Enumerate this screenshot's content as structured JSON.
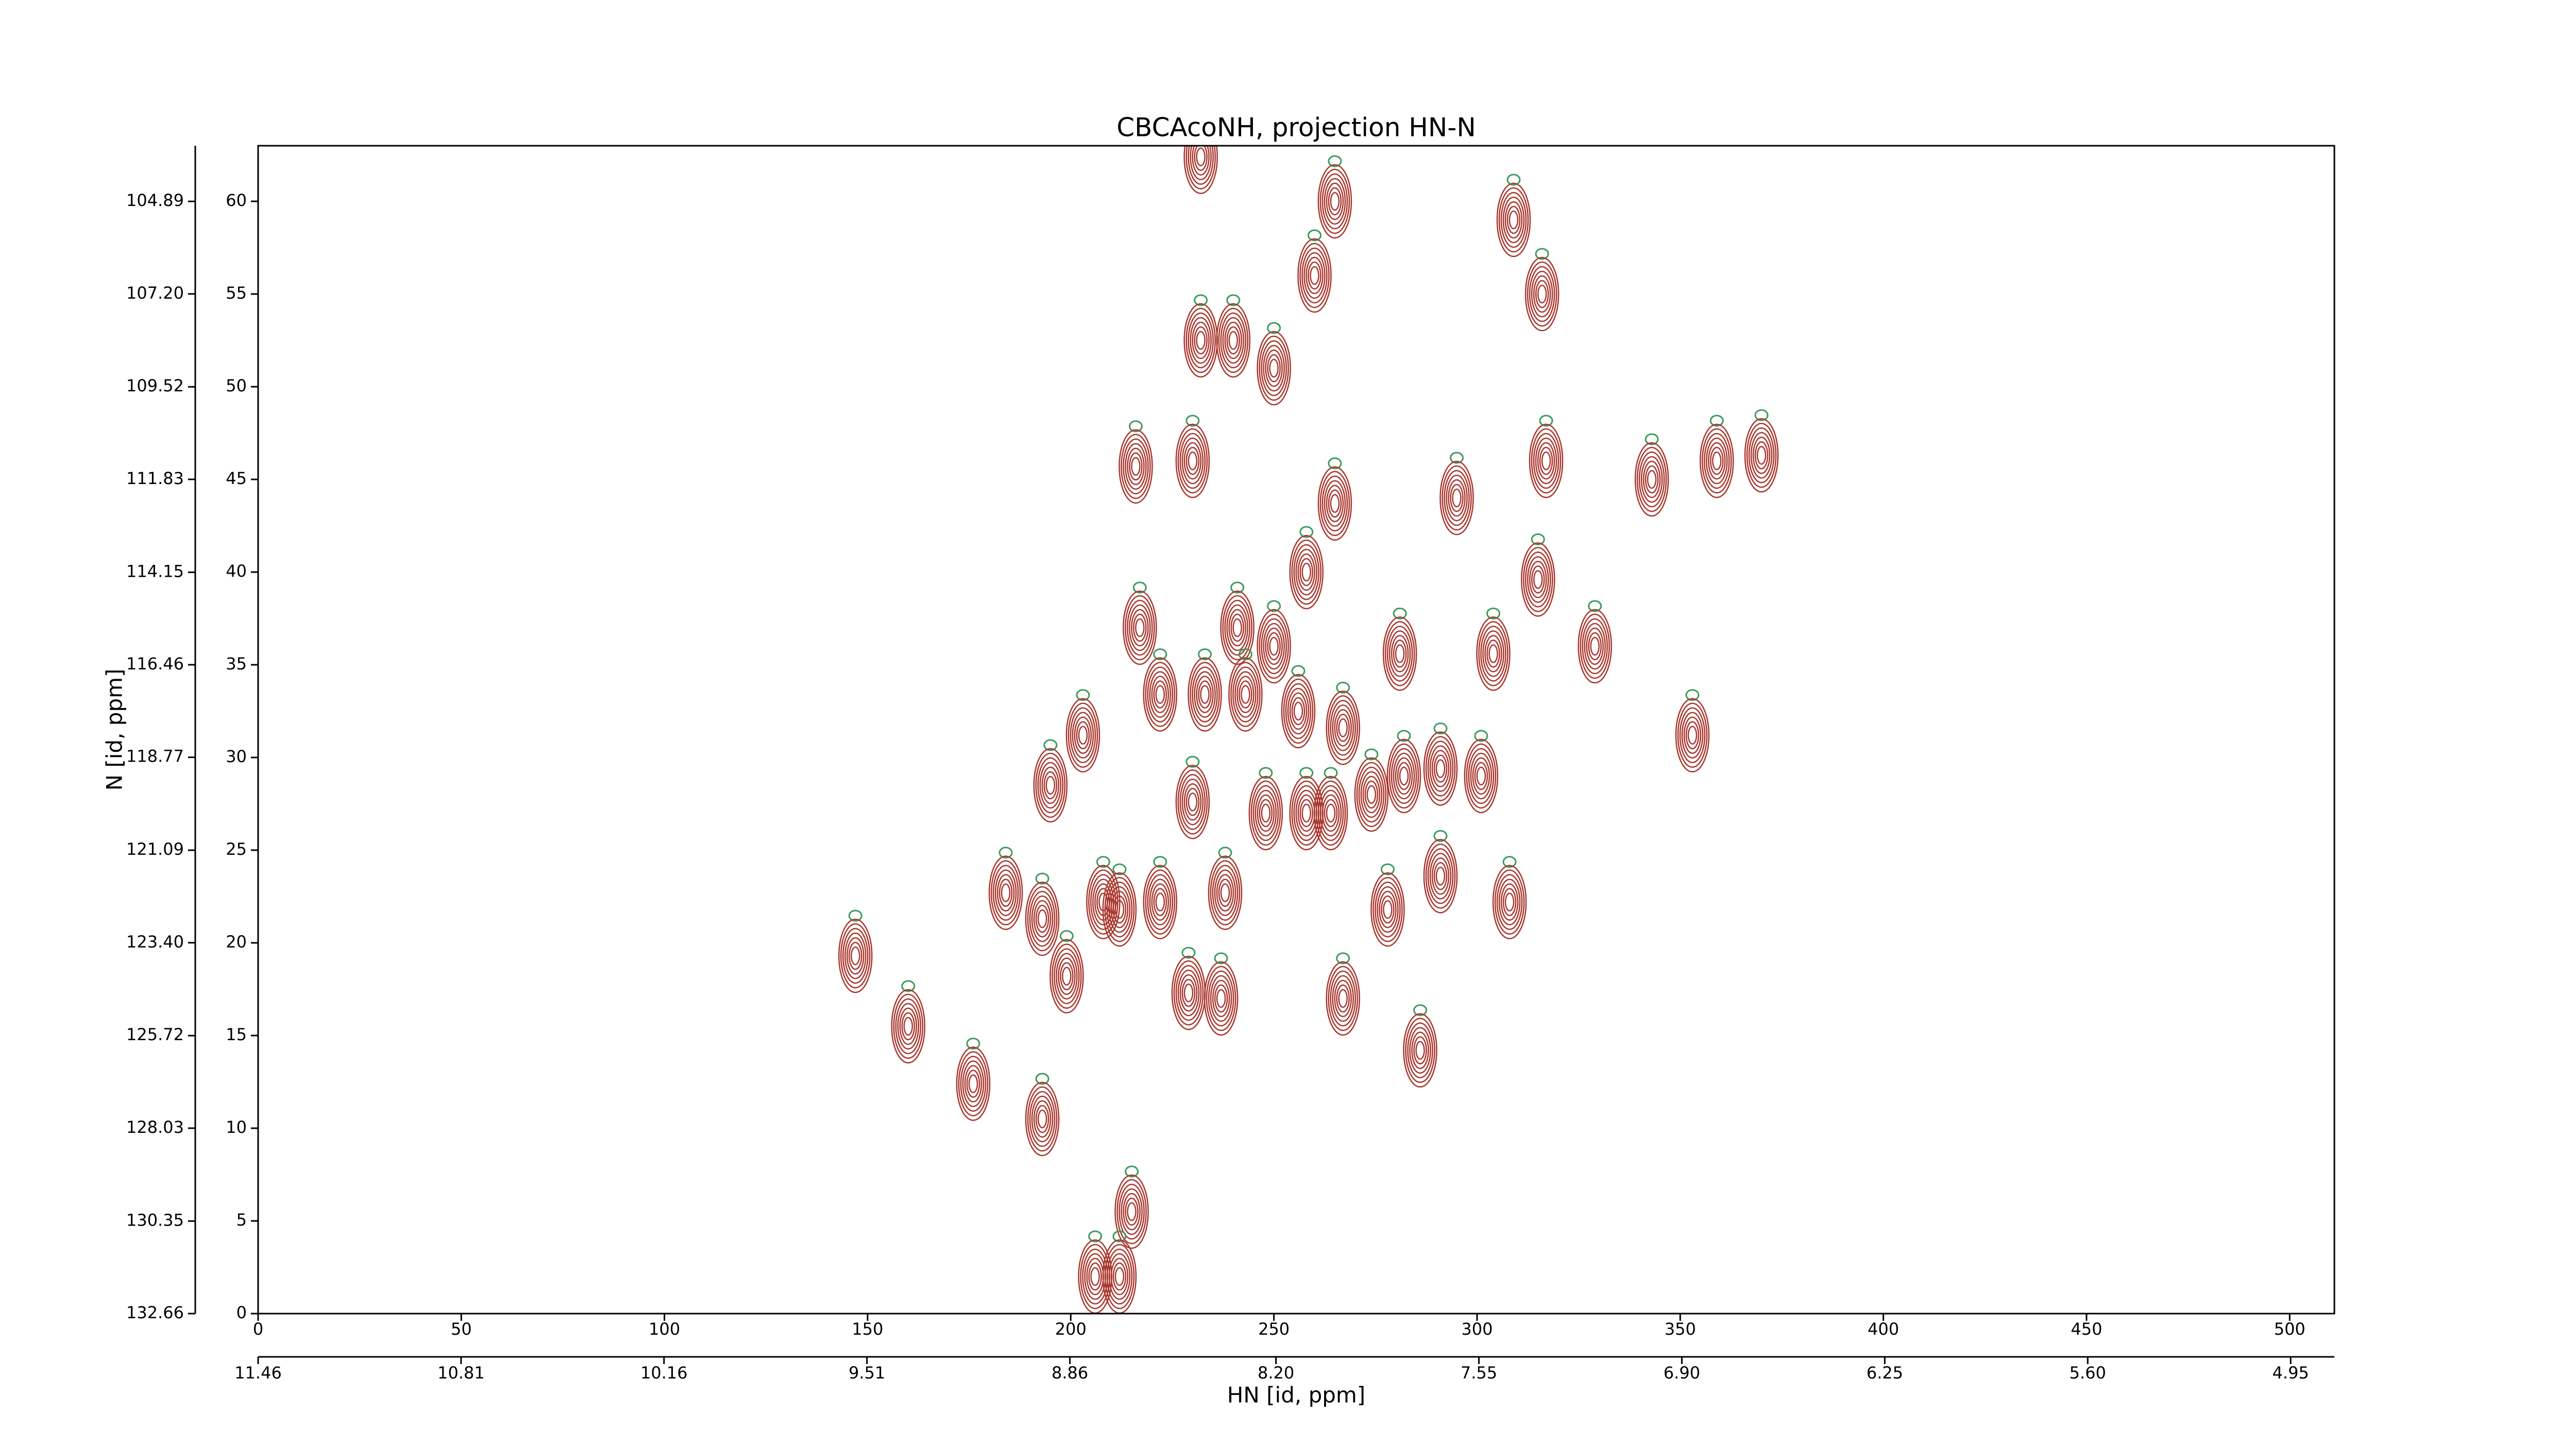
{
  "chart_data": {
    "type": "contour",
    "title": "CBCAcoNH, projection HN-N",
    "xlabel": "HN [id, ppm]",
    "ylabel": "N [id, ppm]",
    "xlim": [
      0,
      511
    ],
    "ylim": [
      0,
      63
    ],
    "xticks": [
      0,
      50,
      100,
      150,
      200,
      250,
      300,
      350,
      400,
      450,
      500
    ],
    "yticks": [
      0,
      5,
      10,
      15,
      20,
      25,
      30,
      35,
      40,
      45,
      50,
      55,
      60
    ],
    "x2lim": [
      11.46,
      4.81
    ],
    "x2ticks": [
      11.46,
      10.81,
      10.16,
      9.51,
      8.86,
      {
        "value": 8.2,
        "label": "8.20"
      },
      7.55,
      {
        "value": 6.9,
        "label": "6.90"
      },
      6.25,
      {
        "value": 5.6,
        "label": "5.60"
      },
      4.95
    ],
    "y2lim": [
      132.66,
      103.5
    ],
    "y2ticks": [
      132.66,
      130.35,
      128.03,
      125.72,
      {
        "value": 123.4,
        "label": "123.40"
      },
      121.09,
      118.77,
      116.46,
      114.15,
      111.83,
      109.52,
      {
        "value": 107.2,
        "label": "107.20"
      },
      104.89
    ],
    "color": "#a9362d",
    "negative_color": "#3c9a5f",
    "x": [
      232,
      265,
      309,
      260,
      316,
      232,
      240,
      250,
      216,
      230,
      265,
      295,
      317,
      343,
      359,
      370,
      258,
      315,
      217,
      241,
      250,
      281,
      304,
      329,
      222,
      233,
      243,
      256,
      267,
      203,
      353,
      195,
      230,
      248,
      258,
      264,
      274,
      282,
      291,
      301,
      184,
      193,
      208,
      222,
      238,
      278,
      291,
      308,
      147,
      199,
      212,
      229,
      237,
      267,
      160,
      286,
      176,
      193,
      215,
      212,
      206
    ],
    "y": [
      62.4,
      60,
      59,
      56,
      55,
      52.5,
      52.5,
      51,
      45.7,
      46,
      43.7,
      44,
      46,
      45,
      46,
      46.3,
      40,
      39.6,
      37,
      37,
      36,
      35.6,
      35.6,
      36,
      33.4,
      33.4,
      33.4,
      32.5,
      31.6,
      31.2,
      31.2,
      28.5,
      27.6,
      27,
      27,
      27,
      28,
      29,
      29.4,
      29,
      22.7,
      21.3,
      22.2,
      22.2,
      22.7,
      21.8,
      23.6,
      22.2,
      19.3,
      18.2,
      21.8,
      17.3,
      17,
      17,
      15.5,
      14.2,
      12.4,
      10.5,
      5.5,
      2,
      2
    ]
  }
}
